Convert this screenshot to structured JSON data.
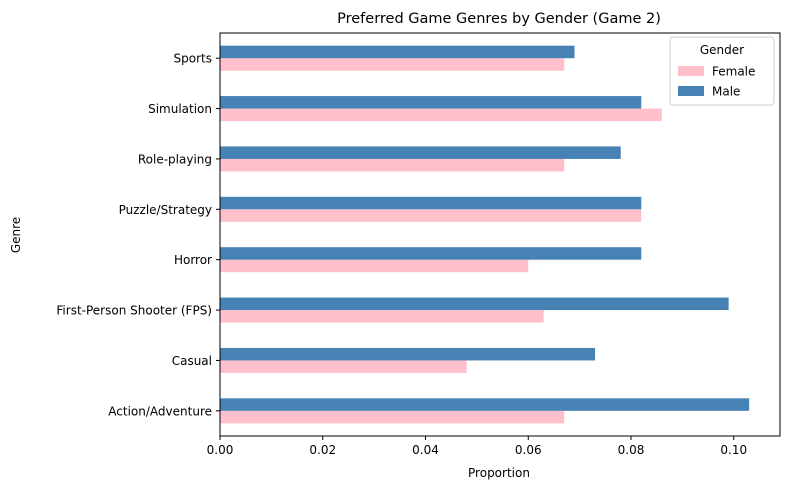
{
  "chart_data": {
    "type": "bar",
    "orientation": "horizontal",
    "title": "Preferred Game Genres by Gender (Game 2)",
    "xlabel": "Proportion",
    "ylabel": "Genre",
    "xlim": [
      0,
      0.109
    ],
    "xticks": [
      "0.00",
      "0.02",
      "0.04",
      "0.06",
      "0.08",
      "0.10"
    ],
    "xtick_values": [
      0,
      0.02,
      0.04,
      0.06,
      0.08,
      0.1
    ],
    "grid": false,
    "legend": {
      "title": "Gender",
      "placement": "top-right"
    },
    "categories": [
      "Action/Adventure",
      "Casual",
      "First-Person Shooter (FPS)",
      "Horror",
      "Puzzle/Strategy",
      "Role-playing",
      "Simulation",
      "Sports"
    ],
    "series": [
      {
        "name": "Female",
        "color": "#ffc0cb",
        "values": [
          0.067,
          0.048,
          0.063,
          0.06,
          0.082,
          0.067,
          0.086,
          0.067
        ]
      },
      {
        "name": "Male",
        "color": "#4682b4",
        "values": [
          0.103,
          0.073,
          0.099,
          0.082,
          0.082,
          0.078,
          0.082,
          0.069
        ]
      }
    ]
  }
}
